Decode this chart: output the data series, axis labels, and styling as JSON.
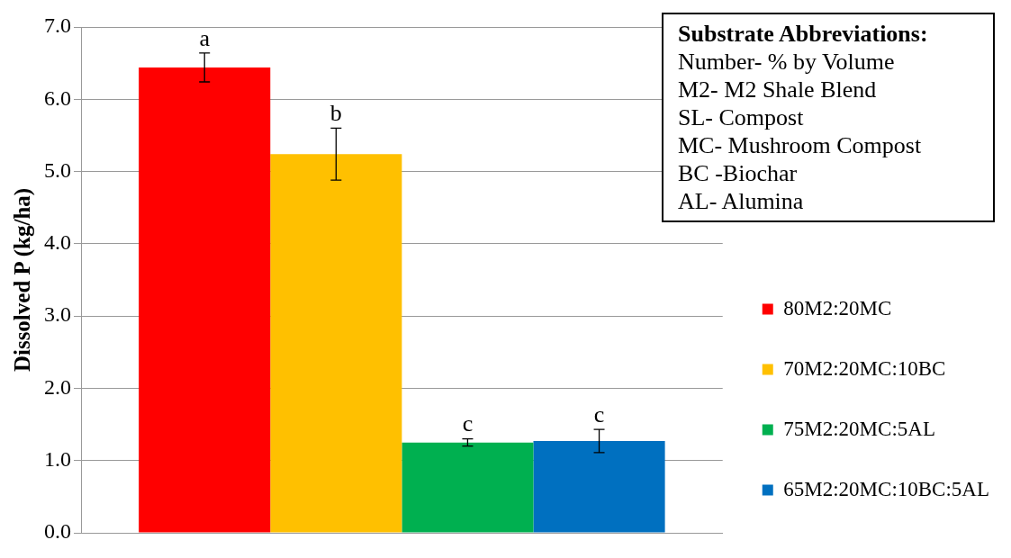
{
  "chart_data": {
    "type": "bar",
    "ylabel": "Dissolved P (kg/ha)",
    "categories": [
      null
    ],
    "series": [
      {
        "name": "80M2:20MC",
        "color": "#ff0000",
        "values": [
          6.44
        ],
        "errors": [
          0.2
        ]
      },
      {
        "name": "70M2:20MC:10BC",
        "color": "#ffc000",
        "values": [
          5.24
        ],
        "errors": [
          [
            4.88,
            5.6
          ]
        ]
      },
      {
        "name": "75M2:20MC:5AL",
        "color": "#00b050",
        "values": [
          1.25
        ],
        "errors": [
          0.05
        ]
      },
      {
        "name": "65M2:20MC:10BC:5AL",
        "color": "#0070c0",
        "values": [
          1.27
        ],
        "errors": [
          0.16
        ]
      }
    ],
    "ylim": [
      0,
      7
    ],
    "yticks": [
      {
        "value": 0,
        "label": "0.0"
      },
      {
        "value": 1,
        "label": "1.0"
      },
      {
        "value": 2,
        "label": "2.0"
      },
      {
        "value": 3,
        "label": "3.0"
      },
      {
        "value": 4,
        "label": "4.0"
      },
      {
        "value": 5,
        "label": "5.0"
      },
      {
        "value": 6,
        "label": "6.0"
      },
      {
        "value": 7,
        "label": "7.0"
      }
    ],
    "grid": "y",
    "legend": "right",
    "tick_labels": "y",
    "annotations": [
      {
        "text": "a",
        "y": 6.64
      },
      {
        "text": "b",
        "y": 5.6
      },
      {
        "text": "c",
        "y": 1.3
      },
      {
        "text": "c",
        "y": 1.43
      },
      "Substrate Abbreviations:",
      "Number- % by Volume",
      "M2- M2 Shale Blend",
      "SL- Compost",
      "MC- Mushroom Compost",
      "BC -Biochar",
      "AL- Alumina"
    ]
  }
}
